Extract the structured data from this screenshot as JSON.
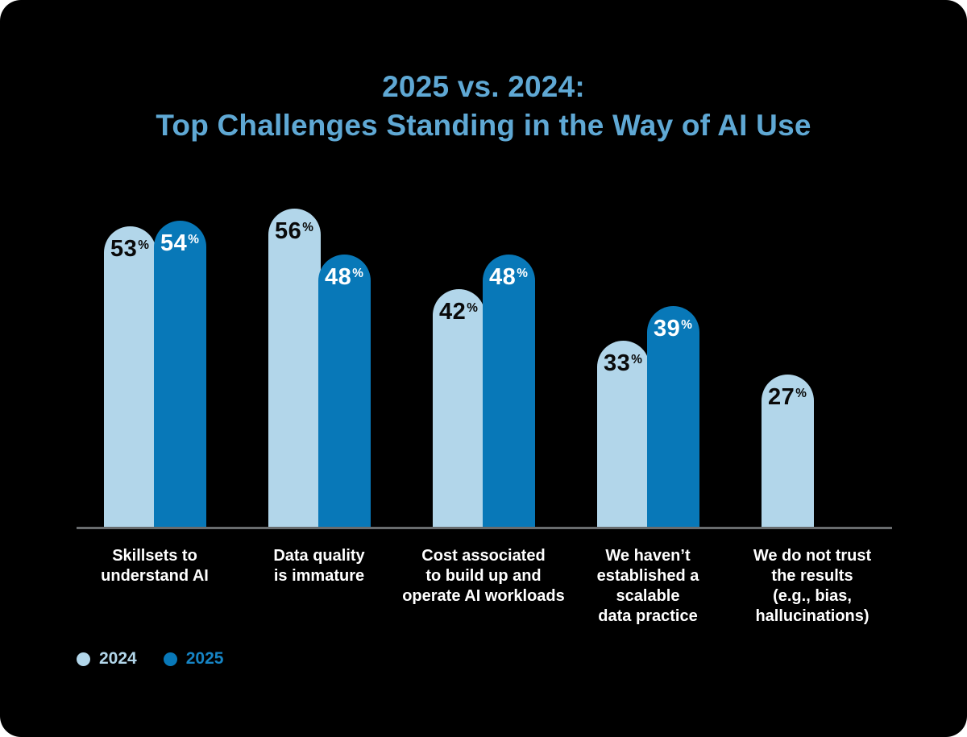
{
  "title": {
    "line1": "2025 vs. 2024:",
    "line2": "Top Challenges Standing in the Way of AI Use"
  },
  "colors": {
    "background": "#000000",
    "title": "#5fa8d4",
    "bar_2024": "#b2d6ea",
    "bar_2025": "#0878b8",
    "value_on_2024": "#0a0a0a",
    "value_on_2025": "#ffffff",
    "axis_line": "#696c6e",
    "category_text": "#ffffff",
    "legend_2024_text": "#b2d6ea",
    "legend_2025_text": "#1684c4"
  },
  "legend": [
    {
      "label": "2024",
      "dot_color": "#b2d6ea",
      "text_color": "#b2d6ea"
    },
    {
      "label": "2025",
      "dot_color": "#0878b8",
      "text_color": "#1684c4"
    }
  ],
  "chart_data": {
    "type": "bar",
    "unit": "%",
    "categories": [
      [
        "Skillsets to",
        "understand AI"
      ],
      [
        "Data quality",
        "is immature"
      ],
      [
        "Cost associated",
        "to build up and",
        "operate AI workloads"
      ],
      [
        "We haven’t",
        "established a",
        "scalable",
        "data practice"
      ],
      [
        "We do not trust",
        "the results",
        "(e.g., bias,",
        "hallucinations)"
      ]
    ],
    "series": [
      {
        "name": "2024",
        "values": [
          53,
          56,
          42,
          33,
          27
        ]
      },
      {
        "name": "2025",
        "values": [
          54,
          48,
          48,
          39,
          null
        ]
      }
    ],
    "ylim": [
      0,
      60
    ],
    "grid": false,
    "legend_position": "bottom-left",
    "bar_cap": "rounded-top"
  }
}
